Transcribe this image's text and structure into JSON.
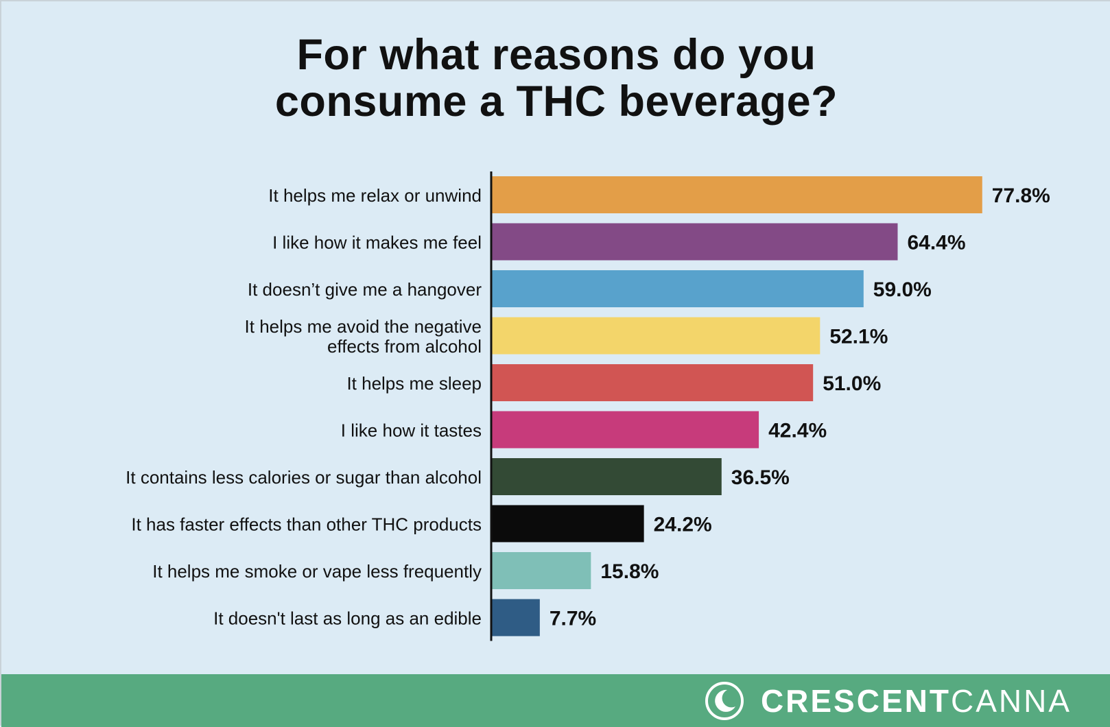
{
  "title_lines": [
    "For what reasons do you",
    "consume a THC beverage?"
  ],
  "brand": {
    "name_bold": "CRESCENT",
    "name_light": "CANNA",
    "logo_icon": "crescent-moon-icon"
  },
  "colors": {
    "background": "#dcebf5",
    "footer": "#57aa80"
  },
  "chart_data": {
    "type": "bar",
    "orientation": "horizontal",
    "title": "For what reasons do you consume a THC beverage?",
    "xlabel": "",
    "ylabel": "",
    "grid": false,
    "legend": "none",
    "value_suffix": "%",
    "categories": [
      [
        "It helps me relax or unwind"
      ],
      [
        "I like how it makes me feel"
      ],
      [
        "It doesn’t give me a hangover"
      ],
      [
        "It helps me avoid the negative",
        "effects from alcohol"
      ],
      [
        "It helps me sleep"
      ],
      [
        "I like how it tastes"
      ],
      [
        "It contains less calories or sugar than alcohol"
      ],
      [
        "It has faster effects than other THC products"
      ],
      [
        "It helps me smoke or vape less frequently"
      ],
      [
        "It doesn't last as long as an edible"
      ]
    ],
    "values": [
      77.8,
      64.4,
      59.0,
      52.1,
      51.0,
      42.4,
      36.5,
      24.2,
      15.8,
      7.7
    ],
    "value_labels": [
      "77.8%",
      "64.4%",
      "59.0%",
      "52.1%",
      "51.0%",
      "42.4%",
      "36.5%",
      "24.2%",
      "15.8%",
      "7.7%"
    ],
    "bar_colors": [
      "#e39e48",
      "#834a86",
      "#58a2cc",
      "#f3d56a",
      "#d15553",
      "#c73b7b",
      "#334a35",
      "#0b0b0b",
      "#7fbfb7",
      "#2f5c85"
    ],
    "xlim": [
      0,
      100
    ]
  }
}
